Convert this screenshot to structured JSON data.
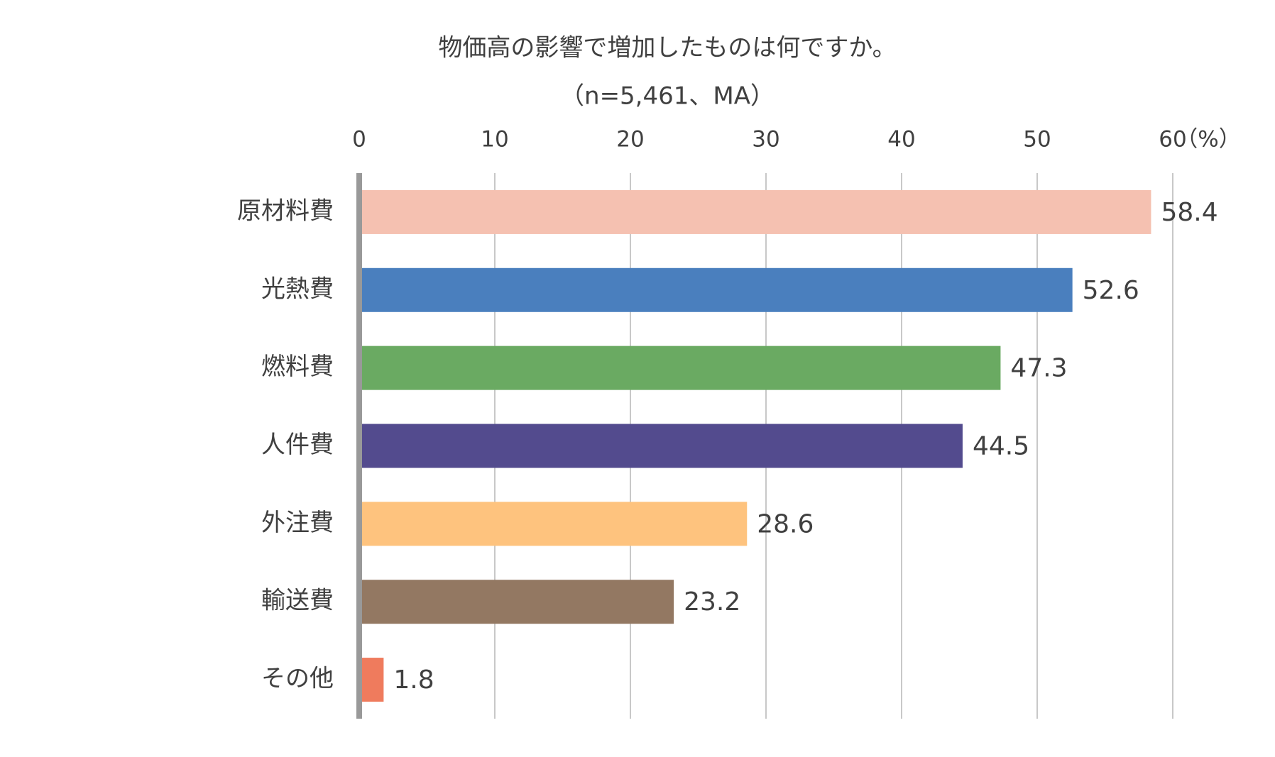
{
  "chart_data": {
    "type": "barh",
    "title": "物価高の影響で増加したものは何ですか。",
    "subtitle": "（n=5,461、MA）",
    "x_unit": "（%）",
    "categories": [
      "原材料費",
      "光熱費",
      "燃料費",
      "人件費",
      "外注費",
      "輸送費",
      "その他"
    ],
    "values": [
      58.4,
      52.6,
      47.3,
      44.5,
      28.6,
      23.2,
      1.8
    ],
    "colors": [
      "#f5c1b1",
      "#4a7fbe",
      "#6aaa62",
      "#534b8e",
      "#fec37e",
      "#937862",
      "#ef7b5d"
    ],
    "xlim": [
      0,
      60
    ],
    "xticks": [
      0,
      10,
      20,
      30,
      40,
      50,
      60
    ],
    "grid": true
  }
}
